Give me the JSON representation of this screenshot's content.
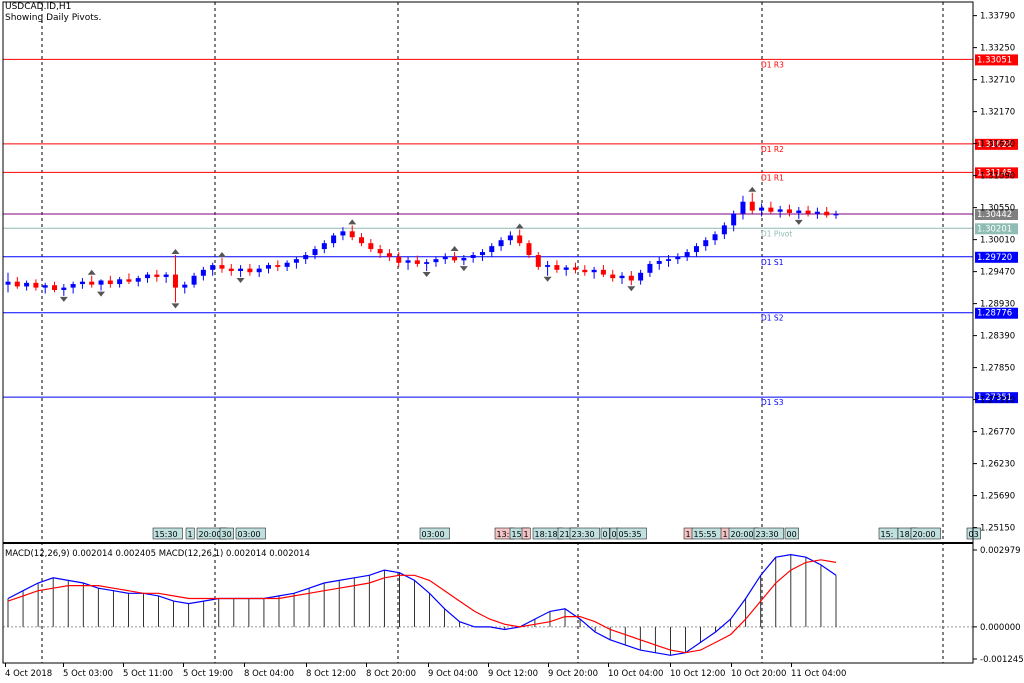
{
  "window": {
    "symbol_line": "USDCAD.ID,H1",
    "indicator_line": "Showing Daily Pivots."
  },
  "colors": {
    "background": "#ffffff",
    "bull_candle": "#0000ff",
    "bear_candle": "#ff0000",
    "resistance": "#ff0000",
    "support": "#0000ff",
    "pivot": "#8fbcb3",
    "price_line": "#800080",
    "macd_main": "#0000ff",
    "macd_signal": "#ff0000",
    "histogram": "#000000"
  },
  "chart_data": [
    {
      "type": "candlestick",
      "title": "USDCAD.ID,H1",
      "subtitle": "Showing Daily Pivots.",
      "y_axis_ticks": [
        "1.33790",
        "1.33250",
        "1.32710",
        "1.32170",
        "1.31630",
        "1.31090",
        "1.30550",
        "1.30010",
        "1.29470",
        "1.28930",
        "1.28390",
        "1.27850",
        "1.27310",
        "1.26770",
        "1.26230",
        "1.25690",
        "1.25150"
      ],
      "ylim": [
        1.2489,
        1.3402
      ],
      "current_price": "1.30442",
      "pivot_levels": [
        {
          "name": "D1 R3",
          "value": 1.33051,
          "label": "1.33051",
          "kind": "resistance"
        },
        {
          "name": "D1 R2",
          "value": 1.31626,
          "label": "1.31626",
          "kind": "resistance"
        },
        {
          "name": "D1 R1",
          "value": 1.31145,
          "label": "1.31145",
          "kind": "resistance"
        },
        {
          "name": "D1 Pivot",
          "value": 1.30201,
          "label": "1.30201",
          "kind": "pivot"
        },
        {
          "name": "D1 S1",
          "value": 1.2972,
          "label": "1.29720",
          "kind": "support"
        },
        {
          "name": "D1 S2",
          "value": 1.28776,
          "label": "1.28776",
          "kind": "support"
        },
        {
          "name": "D1 S3",
          "value": 1.27351,
          "label": "1.27351",
          "kind": "support"
        }
      ],
      "candles": [
        [
          1.2925,
          1.2945,
          1.2912,
          1.293
        ],
        [
          1.293,
          1.2938,
          1.2918,
          1.2922
        ],
        [
          1.2922,
          1.2932,
          1.2915,
          1.2928
        ],
        [
          1.2928,
          1.2934,
          1.2915,
          1.292
        ],
        [
          1.292,
          1.2928,
          1.291,
          1.2924
        ],
        [
          1.2924,
          1.293,
          1.2912,
          1.2916
        ],
        [
          1.2916,
          1.2926,
          1.2906,
          1.292
        ],
        [
          1.292,
          1.293,
          1.291,
          1.2926
        ],
        [
          1.2926,
          1.2936,
          1.2918,
          1.293
        ],
        [
          1.293,
          1.294,
          1.292,
          1.2925
        ],
        [
          1.2925,
          1.2934,
          1.2915,
          1.2932
        ],
        [
          1.2932,
          1.294,
          1.292,
          1.2926
        ],
        [
          1.2926,
          1.2938,
          1.292,
          1.2934
        ],
        [
          1.2934,
          1.2944,
          1.2926,
          1.293
        ],
        [
          1.293,
          1.294,
          1.2922,
          1.2936
        ],
        [
          1.2936,
          1.2946,
          1.2928,
          1.2942
        ],
        [
          1.2942,
          1.295,
          1.293,
          1.2938
        ],
        [
          1.2938,
          1.2946,
          1.2928,
          1.2942
        ],
        [
          1.2942,
          1.2975,
          1.2895,
          1.292
        ],
        [
          1.292,
          1.293,
          1.291,
          1.2925
        ],
        [
          1.2925,
          1.2945,
          1.292,
          1.294
        ],
        [
          1.294,
          1.2955,
          1.2932,
          1.295
        ],
        [
          1.295,
          1.2962,
          1.294,
          1.2958
        ],
        [
          1.2958,
          1.297,
          1.2945,
          1.2952
        ],
        [
          1.2952,
          1.296,
          1.294,
          1.2948
        ],
        [
          1.2948,
          1.2958,
          1.2938,
          1.2952
        ],
        [
          1.2952,
          1.296,
          1.294,
          1.2946
        ],
        [
          1.2946,
          1.2958,
          1.2938,
          1.2952
        ],
        [
          1.2952,
          1.2962,
          1.2944,
          1.2958
        ],
        [
          1.2958,
          1.2966,
          1.2948,
          1.2955
        ],
        [
          1.2955,
          1.2966,
          1.2948,
          1.2962
        ],
        [
          1.2962,
          1.2972,
          1.2952,
          1.2968
        ],
        [
          1.2968,
          1.298,
          1.296,
          1.2975
        ],
        [
          1.2975,
          1.299,
          1.2968,
          1.2985
        ],
        [
          1.2985,
          1.3,
          1.2978,
          1.2995
        ],
        [
          1.2995,
          1.3012,
          1.2988,
          1.3008
        ],
        [
          1.3008,
          1.3022,
          1.3,
          1.3015
        ],
        [
          1.3015,
          1.3025,
          1.3,
          1.3005
        ],
        [
          1.3005,
          1.3012,
          1.299,
          1.2995
        ],
        [
          1.2995,
          1.3002,
          1.298,
          1.2985
        ],
        [
          1.2985,
          1.2992,
          1.297,
          1.2978
        ],
        [
          1.2978,
          1.2985,
          1.2965,
          1.2972
        ],
        [
          1.2972,
          1.298,
          1.2955,
          1.2962
        ],
        [
          1.2962,
          1.2972,
          1.295,
          1.2966
        ],
        [
          1.2966,
          1.2974,
          1.2955,
          1.296
        ],
        [
          1.296,
          1.2968,
          1.2948,
          1.2963
        ],
        [
          1.2963,
          1.2972,
          1.2955,
          1.2968
        ],
        [
          1.2968,
          1.2978,
          1.296,
          1.2972
        ],
        [
          1.2972,
          1.298,
          1.2962,
          1.2966
        ],
        [
          1.2966,
          1.2975,
          1.2958,
          1.297
        ],
        [
          1.297,
          1.298,
          1.2962,
          1.2975
        ],
        [
          1.2975,
          1.2985,
          1.2965,
          1.298
        ],
        [
          1.298,
          1.2995,
          1.2972,
          1.299
        ],
        [
          1.299,
          1.3005,
          1.2982,
          1.3
        ],
        [
          1.3,
          1.3015,
          1.2992,
          1.3008
        ],
        [
          1.3008,
          1.3018,
          1.299,
          1.2995
        ],
        [
          1.2995,
          1.3,
          1.297,
          1.2975
        ],
        [
          1.2975,
          1.298,
          1.295,
          1.2955
        ],
        [
          1.2955,
          1.2965,
          1.294,
          1.2958
        ],
        [
          1.2958,
          1.2966,
          1.2945,
          1.295
        ],
        [
          1.295,
          1.2958,
          1.294,
          1.2954
        ],
        [
          1.2954,
          1.2962,
          1.2944,
          1.295
        ],
        [
          1.295,
          1.2958,
          1.294,
          1.2946
        ],
        [
          1.2946,
          1.2955,
          1.2935,
          1.295
        ],
        [
          1.295,
          1.2958,
          1.2938,
          1.2942
        ],
        [
          1.2942,
          1.295,
          1.293,
          1.2936
        ],
        [
          1.2936,
          1.2946,
          1.2926,
          1.294
        ],
        [
          1.294,
          1.2948,
          1.2924,
          1.2932
        ],
        [
          1.2932,
          1.295,
          1.2925,
          1.2945
        ],
        [
          1.2945,
          1.2965,
          1.2938,
          1.296
        ],
        [
          1.296,
          1.2972,
          1.295,
          1.2965
        ],
        [
          1.2965,
          1.2975,
          1.2955,
          1.2968
        ],
        [
          1.2968,
          1.2978,
          1.296,
          1.2972
        ],
        [
          1.2972,
          1.2985,
          1.2965,
          1.298
        ],
        [
          1.298,
          1.2995,
          1.2972,
          1.299
        ],
        [
          1.299,
          1.3005,
          1.2982,
          1.3
        ],
        [
          1.3,
          1.3015,
          1.2992,
          1.301
        ],
        [
          1.301,
          1.303,
          1.3002,
          1.3025
        ],
        [
          1.3025,
          1.305,
          1.3015,
          1.3045
        ],
        [
          1.3045,
          1.3075,
          1.3035,
          1.3065
        ],
        [
          1.3065,
          1.308,
          1.3045,
          1.305
        ],
        [
          1.305,
          1.3062,
          1.304,
          1.3055
        ],
        [
          1.3055,
          1.3065,
          1.3045,
          1.3048
        ],
        [
          1.3048,
          1.3058,
          1.3038,
          1.3052
        ],
        [
          1.3052,
          1.306,
          1.304,
          1.3046
        ],
        [
          1.3046,
          1.3056,
          1.3036,
          1.305
        ],
        [
          1.305,
          1.3058,
          1.304,
          1.3045
        ],
        [
          1.3045,
          1.3055,
          1.3036,
          1.3048
        ],
        [
          1.3048,
          1.3056,
          1.3038,
          1.3042
        ],
        [
          1.3042,
          1.305,
          1.3036,
          1.3044
        ]
      ],
      "x_time_labels": [
        "4 Oct 2018",
        "5 Oct 03:00",
        "5 Oct 11:00",
        "5 Oct 19:00",
        "8 Oct 04:00",
        "8 Oct 12:00",
        "8 Oct 20:00",
        "9 Oct 04:00",
        "9 Oct 12:00",
        "9 Oct 20:00",
        "10 Oct 04:00",
        "10 Oct 12:00",
        "10 Oct 20:00",
        "11 Oct 04:00"
      ],
      "event_tags": [
        "15:30",
        "1",
        "20:00",
        "30",
        "03:00",
        "03:00",
        "13:",
        "15:",
        "1",
        "18:18",
        "21:",
        "23:30",
        "0",
        "0",
        "05:35",
        "1",
        "15:55",
        "1",
        "20:00",
        "23:30",
        "00",
        "15:",
        "18:",
        "20:00",
        "03"
      ]
    },
    {
      "type": "line",
      "title": "MACD(12,26,9) 0.002014 0.002405 MACD(12,26,1) 0.002014 0.002014",
      "y_axis_ticks": [
        "0.002979",
        "0.000000",
        "-0.001245"
      ],
      "ylim": [
        -0.001245,
        0.002979
      ],
      "series": [
        {
          "name": "MACD main",
          "values": [
            0.0011,
            0.0014,
            0.0017,
            0.0019,
            0.0018,
            0.0017,
            0.0015,
            0.0014,
            0.0013,
            0.0013,
            0.0012,
            0.001,
            0.0009,
            0.001,
            0.0011,
            0.0011,
            0.0011,
            0.0011,
            0.0012,
            0.0013,
            0.0015,
            0.0017,
            0.0018,
            0.0019,
            0.002,
            0.0022,
            0.0021,
            0.0018,
            0.0013,
            0.0007,
            0.0002,
            0.0,
            0.0,
            -0.0001,
            0.0,
            0.0003,
            0.0006,
            0.0007,
            0.0003,
            -0.0002,
            -0.0005,
            -0.0007,
            -0.0009,
            -0.001,
            -0.0011,
            -0.001,
            -0.0006,
            -0.0002,
            0.0003,
            0.0011,
            0.002,
            0.0027,
            0.0028,
            0.0027,
            0.0024,
            0.002
          ]
        },
        {
          "name": "MACD signal",
          "values": [
            0.001,
            0.0012,
            0.0014,
            0.0015,
            0.0016,
            0.0016,
            0.0016,
            0.0015,
            0.0014,
            0.0013,
            0.0013,
            0.0012,
            0.0011,
            0.0011,
            0.0011,
            0.0011,
            0.0011,
            0.0011,
            0.0011,
            0.0012,
            0.0013,
            0.0014,
            0.0015,
            0.0016,
            0.0017,
            0.0019,
            0.002,
            0.002,
            0.0018,
            0.0014,
            0.001,
            0.0006,
            0.0003,
            0.0001,
            0.0,
            0.0001,
            0.0002,
            0.0004,
            0.0004,
            0.0002,
            -0.0001,
            -0.0003,
            -0.0005,
            -0.0007,
            -0.0009,
            -0.001,
            -0.0009,
            -0.0006,
            -0.0003,
            0.0003,
            0.001,
            0.0017,
            0.0022,
            0.0025,
            0.0026,
            0.0025
          ]
        }
      ]
    }
  ]
}
